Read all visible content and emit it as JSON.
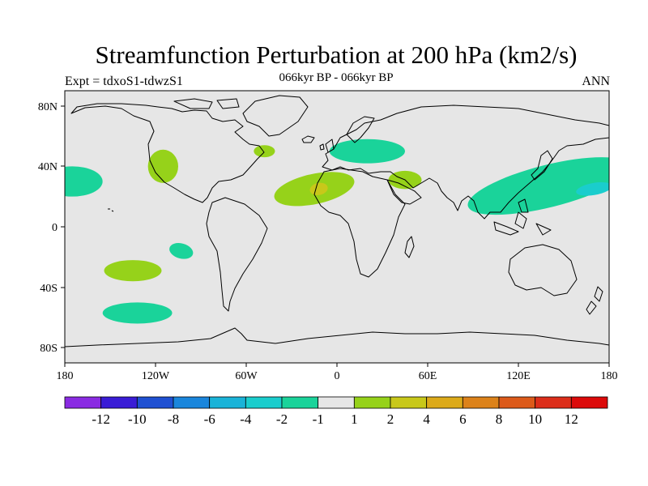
{
  "header": {
    "title": "Streamfunction Perturbation at 200 hPa (km2/s)",
    "left": "Expt = tdxoS1-tdwzS1",
    "center": "066kyr BP - 066kyr BP",
    "right": "ANN"
  },
  "map": {
    "background_color": "#e6e6e6",
    "lon_ticks": [
      "180",
      "120W",
      "60W",
      "0",
      "60E",
      "120E",
      "180"
    ],
    "lat_ticks": [
      "80N",
      "40N",
      "0",
      "40S",
      "80S"
    ]
  },
  "colorbar": {
    "colors": [
      "#8a2be2",
      "#3a1cd6",
      "#1f50d2",
      "#1a86dc",
      "#1ab3d8",
      "#1acdcd",
      "#1ad39a",
      "#e6e6e6",
      "#96d21a",
      "#c8c81a",
      "#dcaa1a",
      "#dc821a",
      "#dc5a1a",
      "#dc2e1a",
      "#dc0a0a"
    ],
    "labels": [
      "-12",
      "-10",
      "-8",
      "-6",
      "-4",
      "-2",
      "-1",
      "1",
      "2",
      "4",
      "6",
      "8",
      "10",
      "12"
    ]
  },
  "chart_data": {
    "type": "heatmap",
    "title": "Streamfunction Perturbation at 200 hPa (km2/s)",
    "xlim": [
      -180,
      180
    ],
    "ylim": [
      -90,
      90
    ],
    "contour_levels": [
      -12,
      -10,
      -8,
      -6,
      -4,
      -2,
      -1,
      1,
      2,
      4,
      6,
      8,
      10,
      12
    ],
    "regions": [
      {
        "lon": -175,
        "lat": 30,
        "value": -1.5
      },
      {
        "lon": -115,
        "lat": 40,
        "value": 1.5
      },
      {
        "lon": -48,
        "lat": 50,
        "value": 1.5
      },
      {
        "lon": -15,
        "lat": 25,
        "value": 1.5
      },
      {
        "lon": -12,
        "lat": 25,
        "value": 2.5
      },
      {
        "lon": 20,
        "lat": 50,
        "value": -1.5
      },
      {
        "lon": 45,
        "lat": 31,
        "value": 1.5
      },
      {
        "lon": 140,
        "lat": 27,
        "value": -1.5
      },
      {
        "lon": 170,
        "lat": 25,
        "value": -2.5
      },
      {
        "lon": -103,
        "lat": -16,
        "value": -1.5
      },
      {
        "lon": -135,
        "lat": -29,
        "value": 1.5
      },
      {
        "lon": -132,
        "lat": -57,
        "value": -1.5
      }
    ]
  }
}
